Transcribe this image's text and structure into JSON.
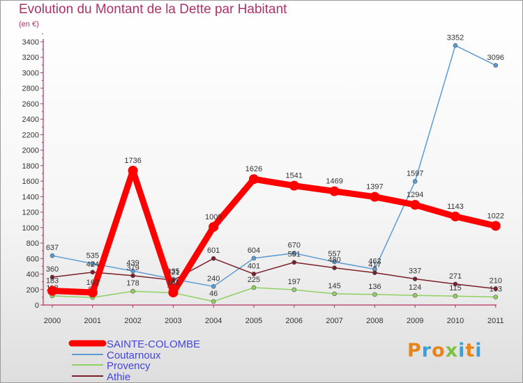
{
  "title": "Evolution du Montant de la Dette par Habitant",
  "unit": "(en €)",
  "logo": {
    "text": "Proxiti",
    "colors": [
      "#e8841c",
      "#3aa0d8",
      "#e8841c",
      "#7cc242",
      "#3aa0d8",
      "#e8841c",
      "#3aa0d8"
    ]
  },
  "chart_data": {
    "type": "line",
    "x": [
      "2000",
      "2001",
      "2002",
      "2003",
      "2004",
      "2005",
      "2006",
      "2007",
      "2008",
      "2009",
      "2010",
      "2011"
    ],
    "ylim": [
      0,
      3400
    ],
    "yticks": [
      0,
      200,
      400,
      600,
      800,
      1000,
      1200,
      1400,
      1600,
      1800,
      2000,
      2200,
      2400,
      2600,
      2800,
      3000,
      3200,
      3400
    ],
    "grid": false,
    "legend": "bottom-left",
    "series": [
      {
        "name": "SAINTE-COLOMBE",
        "color": "#ff0000",
        "values": [
          183,
          162,
          1736,
          161,
          1009,
          1626,
          1541,
          1469,
          1397,
          1294,
          1143,
          1022
        ]
      },
      {
        "name": "Coutarnoux",
        "color": "#5b9bd5",
        "values": [
          637,
          535,
          439,
          335,
          240,
          604,
          670,
          557,
          462,
          1597,
          3352,
          3096
        ]
      },
      {
        "name": "Provency",
        "color": "#90d060",
        "values": [
          118,
          97,
          178,
          157,
          46,
          225,
          197,
          145,
          136,
          124,
          115,
          103
        ]
      },
      {
        "name": "Athie",
        "color": "#7a1f2a",
        "values": [
          360,
          424,
          379,
          321,
          601,
          401,
          551,
          480,
          417,
          337,
          271,
          210
        ]
      }
    ]
  }
}
